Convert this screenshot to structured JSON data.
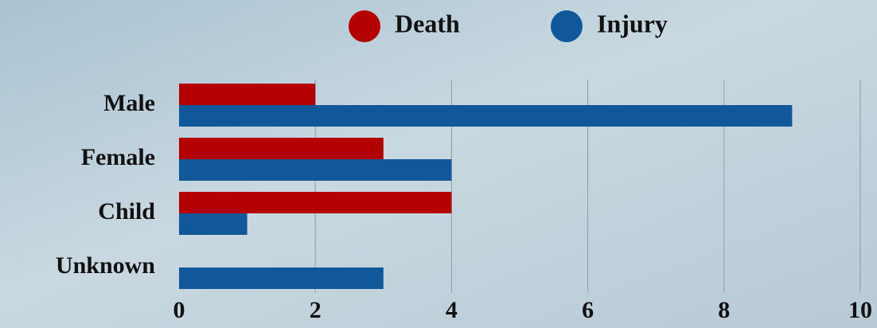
{
  "chart_data": {
    "type": "bar",
    "orientation": "horizontal",
    "categories": [
      "Male",
      "Female",
      "Child",
      "Unknown"
    ],
    "series": [
      {
        "name": "Death",
        "color": "#b30000",
        "values": [
          2,
          3,
          4,
          0
        ]
      },
      {
        "name": "Injury",
        "color": "#11589a",
        "values": [
          9,
          4,
          1,
          3
        ]
      }
    ],
    "xlim": [
      0,
      10
    ],
    "xticks": [
      0,
      2,
      4,
      6,
      8,
      10
    ],
    "grid": true,
    "legend": "top"
  }
}
